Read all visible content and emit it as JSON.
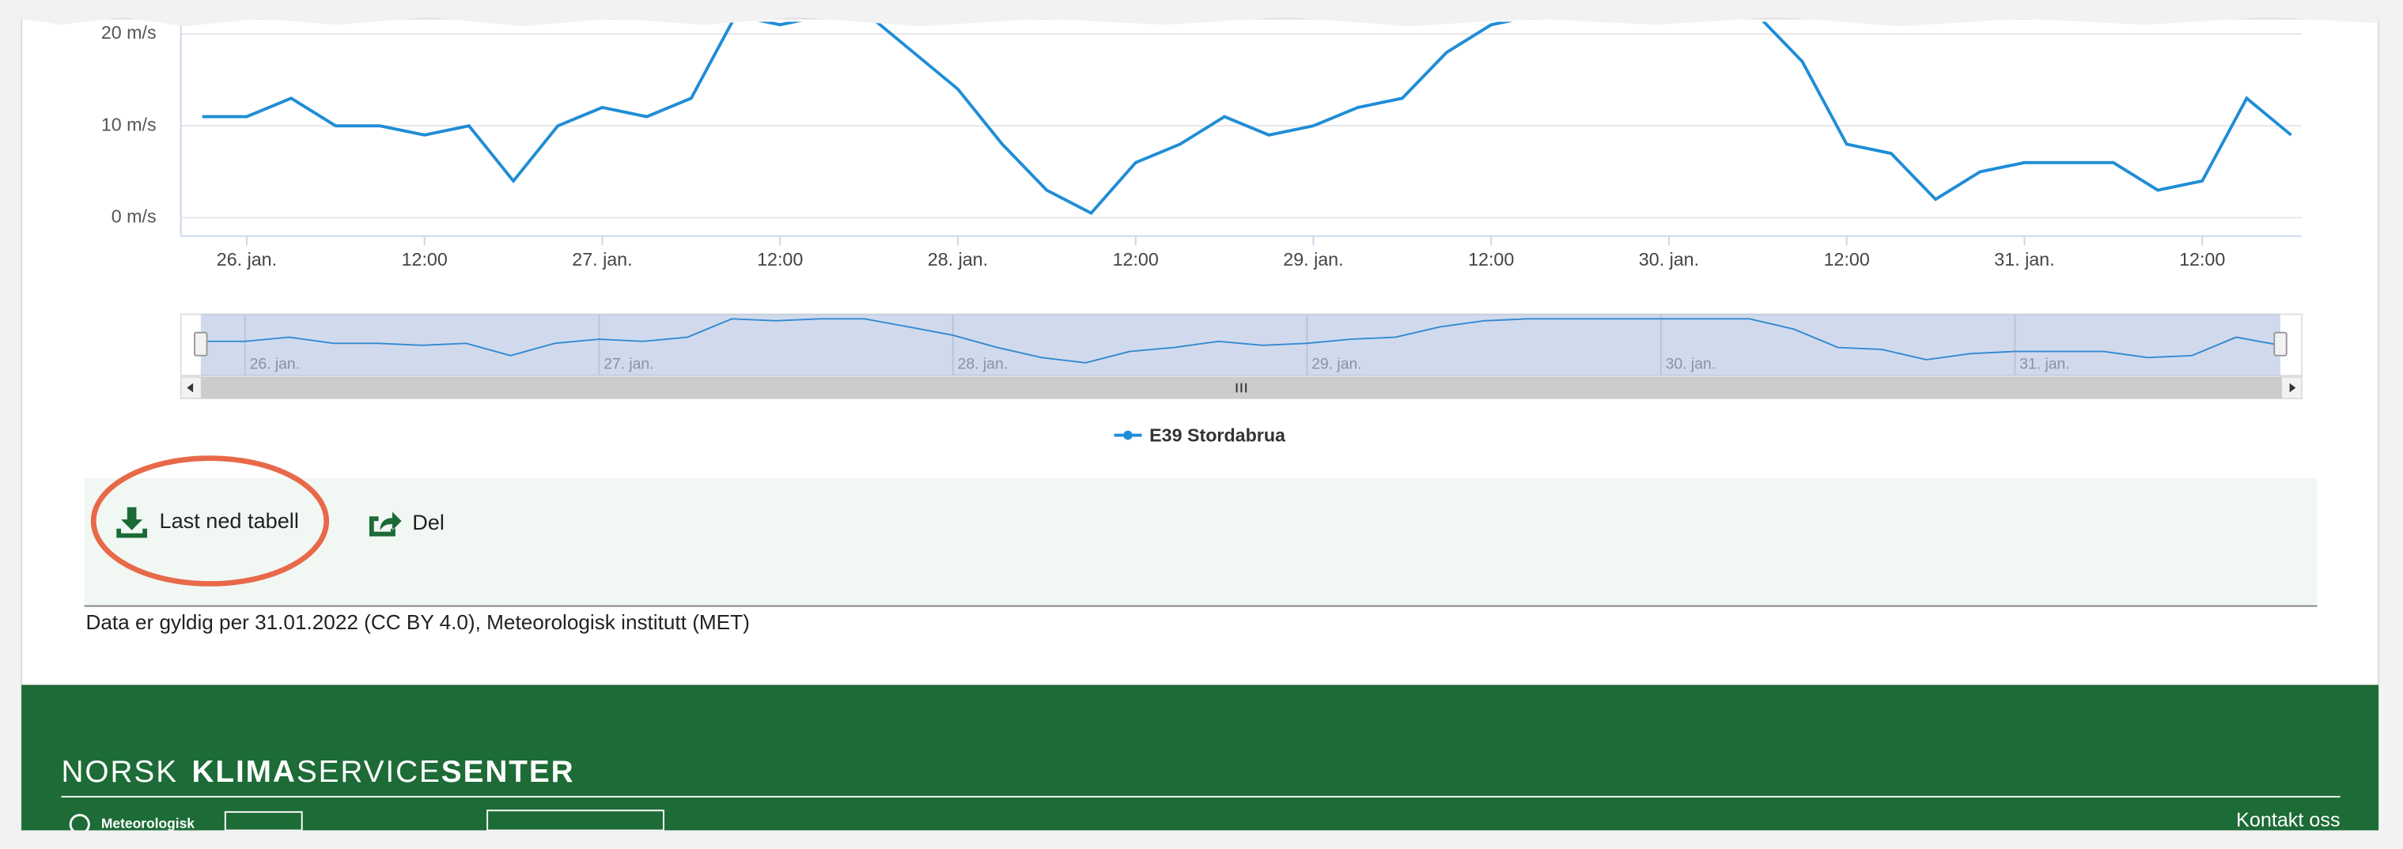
{
  "chart_data": {
    "type": "line",
    "categories": [
      null,
      "26. jan.",
      null,
      null,
      null,
      "12:00",
      null,
      null,
      null,
      "27. jan.",
      null,
      null,
      null,
      "12:00",
      null,
      null,
      null,
      "28. jan.",
      null,
      null,
      null,
      "12:00",
      null,
      null,
      null,
      "29. jan.",
      null,
      null,
      null,
      "12:00",
      null,
      null,
      null,
      "30. jan.",
      null,
      null,
      null,
      "12:00",
      null,
      null,
      null,
      "31. jan.",
      null,
      null,
      null,
      "12:00",
      null,
      null
    ],
    "series": [
      {
        "name": "E39 Stordabrua",
        "color": "#1f8dd6",
        "values": [
          11,
          11,
          13,
          10,
          10,
          9,
          10,
          4,
          10,
          12,
          11,
          13,
          22,
          21,
          22,
          22,
          18,
          14,
          8,
          3,
          0.5,
          6,
          8,
          11,
          9,
          10,
          12,
          13,
          18,
          21,
          22,
          22,
          22,
          22,
          22,
          22,
          17,
          8,
          7,
          2,
          5,
          6,
          6,
          6,
          3,
          4,
          13,
          9
        ]
      }
    ],
    "ylim": [
      -2,
      22
    ],
    "yticks": [
      {
        "value": 0,
        "label": "0 m/s"
      },
      {
        "value": 10,
        "label": "10 m/s"
      },
      {
        "value": 20,
        "label": "20 m/s"
      }
    ],
    "grid": true
  },
  "actions": [
    "Last ned tabell",
    "Del"
  ],
  "source": "Data er gyldig per 31.01.2022 (CC BY 4.0), Meteorologisk institutt (MET)",
  "footer": {
    "brand": [
      "NORSK",
      "KLIMA",
      "SERVICE",
      "SENTER"
    ],
    "logo": "Meteorologisk",
    "contact": "Kontakt oss"
  }
}
